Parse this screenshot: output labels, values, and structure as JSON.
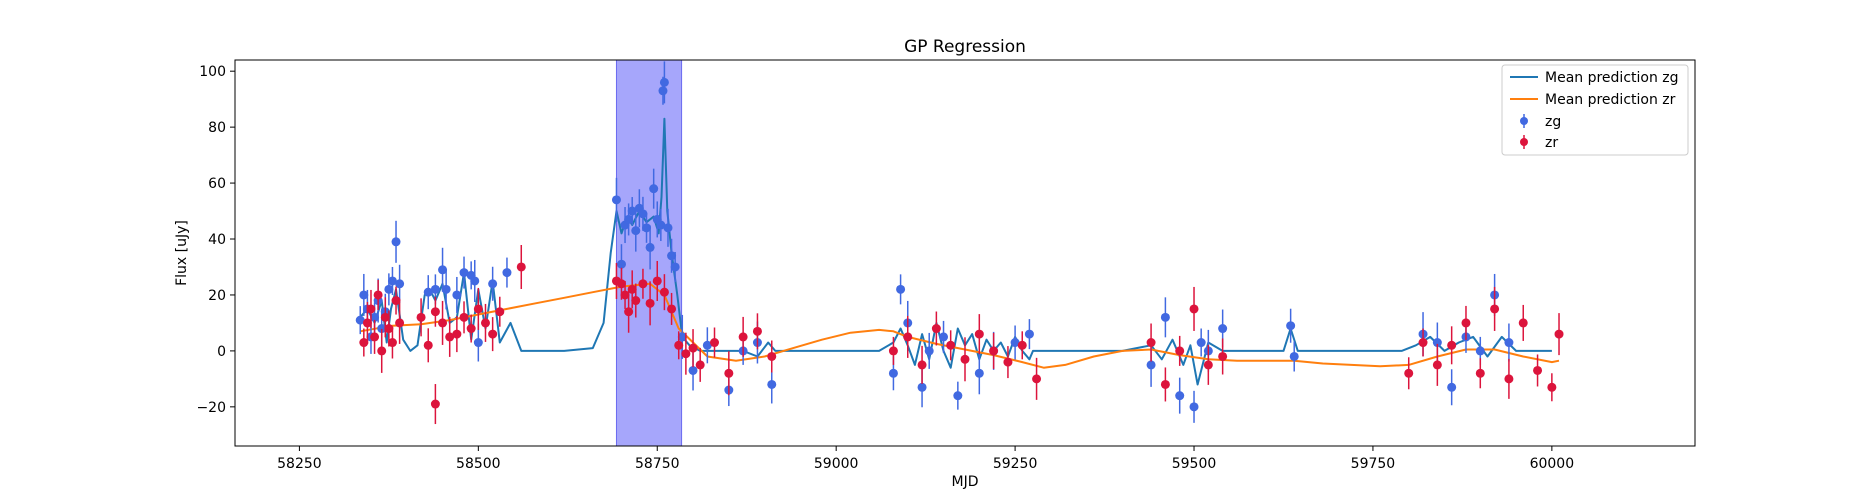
{
  "chart_data": {
    "type": "scatter",
    "title": "GP Regression",
    "xlabel": "MJD",
    "ylabel": "Flux [uJy]",
    "xlim": [
      58160,
      60200
    ],
    "ylim": [
      -34,
      104
    ],
    "xticks": [
      58250,
      58500,
      58750,
      59000,
      59250,
      59500,
      59750,
      60000
    ],
    "yticks": [
      -20,
      0,
      20,
      40,
      60,
      80,
      100
    ],
    "grid": false,
    "legend": "top-right",
    "highlight_region": {
      "x0": 58693,
      "x1": 58784,
      "color": "#a6a6fb"
    },
    "series": [
      {
        "name": "Mean prediction zg",
        "kind": "line",
        "color": "#1f77b4",
        "x": [
          58335,
          58345,
          58355,
          58365,
          58372,
          58378,
          58385,
          58395,
          58405,
          58415,
          58425,
          58432,
          58440,
          58450,
          58460,
          58470,
          58480,
          58490,
          58500,
          58510,
          58520,
          58530,
          58545,
          58560,
          58580,
          58620,
          58660,
          58675,
          58685,
          58693,
          58700,
          58708,
          58715,
          58725,
          58735,
          58745,
          58752,
          58756,
          58760,
          58764,
          58770,
          58778,
          58785,
          58795,
          58810,
          58840,
          58870,
          58890,
          58905,
          58915,
          58935,
          59000,
          59060,
          59080,
          59090,
          59100,
          59110,
          59120,
          59130,
          59140,
          59150,
          59160,
          59170,
          59180,
          59190,
          59200,
          59210,
          59220,
          59230,
          59240,
          59250,
          59260,
          59270,
          59275,
          59300,
          59400,
          59440,
          59455,
          59470,
          59485,
          59495,
          59505,
          59520,
          59540,
          59560,
          59600,
          59625,
          59635,
          59645,
          59700,
          59790,
          59810,
          59830,
          59850,
          59870,
          59890,
          59910,
          59930,
          59950,
          59970,
          60000
        ],
        "y": [
          12,
          15,
          10,
          18,
          3,
          15,
          22,
          4,
          0,
          2,
          20,
          22,
          18,
          24,
          10,
          12,
          28,
          4,
          22,
          8,
          25,
          3,
          10,
          0,
          0,
          0,
          1,
          10,
          35,
          50,
          42,
          48,
          45,
          50,
          46,
          48,
          42,
          55,
          83,
          50,
          35,
          20,
          5,
          2,
          0,
          0,
          0,
          -2,
          3,
          0,
          0,
          0,
          0,
          3,
          8,
          2,
          -5,
          6,
          -3,
          10,
          0,
          -6,
          8,
          2,
          6,
          -3,
          4,
          0,
          3,
          -2,
          5,
          0,
          -3,
          0,
          0,
          0,
          2,
          -3,
          4,
          -5,
          2,
          -12,
          3,
          0,
          0,
          0,
          0,
          8,
          0,
          0,
          0,
          2,
          5,
          0,
          3,
          5,
          -2,
          5,
          0,
          0,
          0
        ]
      },
      {
        "name": "Mean prediction zr",
        "kind": "line",
        "color": "#ff7f0e",
        "x": [
          58335,
          58380,
          58420,
          58460,
          58500,
          58540,
          58580,
          58620,
          58660,
          58700,
          58740,
          58760,
          58780,
          58820,
          58860,
          58900,
          58940,
          58980,
          59020,
          59060,
          59080,
          59100,
          59140,
          59180,
          59220,
          59260,
          59290,
          59320,
          59360,
          59400,
          59440,
          59480,
          59520,
          59560,
          59600,
          59640,
          59680,
          59720,
          59760,
          59800,
          59840,
          59880,
          59920,
          59960,
          60000,
          60010
        ],
        "y": [
          7,
          9,
          9.5,
          11,
          13,
          15,
          17,
          19,
          21,
          23,
          24,
          20,
          8,
          -2,
          -3.5,
          -2,
          1,
          4,
          6.5,
          7.5,
          7,
          5,
          2.5,
          0.5,
          -1.5,
          -4,
          -6,
          -5,
          -2,
          0,
          0.5,
          -1.5,
          -3,
          -3.5,
          -3.5,
          -3.5,
          -4.5,
          -5,
          -5.5,
          -5,
          -2,
          0.5,
          0.5,
          -2,
          -4,
          -3.5
        ]
      },
      {
        "name": "zg",
        "kind": "points",
        "color": "#4169e1",
        "x": [
          58335,
          58340,
          58345,
          58350,
          58355,
          58360,
          58365,
          58370,
          58375,
          58380,
          58385,
          58390,
          58430,
          58440,
          58450,
          58455,
          58470,
          58480,
          58490,
          58495,
          58500,
          58520,
          58540,
          58693,
          58700,
          58705,
          58710,
          58715,
          58720,
          58725,
          58730,
          58735,
          58740,
          58745,
          58750,
          58755,
          58758,
          58760,
          58765,
          58770,
          58775,
          58785,
          58800,
          58820,
          58850,
          58870,
          58890,
          58910,
          59080,
          59090,
          59100,
          59120,
          59130,
          59150,
          59170,
          59200,
          59220,
          59250,
          59270,
          59440,
          59460,
          59480,
          59500,
          59510,
          59520,
          59540,
          59635,
          59640,
          59820,
          59840,
          59860,
          59880,
          59900,
          59920,
          59940
        ],
        "y": [
          11,
          20,
          15,
          5,
          12,
          18,
          8,
          14,
          22,
          25,
          39,
          24,
          21,
          22,
          29,
          22,
          20,
          28,
          27,
          25,
          3,
          24,
          28,
          54,
          31,
          45,
          47,
          50,
          43,
          51,
          49,
          44,
          37,
          58,
          47,
          45,
          93,
          96,
          44,
          34,
          30,
          5,
          -7,
          2,
          -14,
          0,
          3,
          -12,
          -8,
          22,
          10,
          -13,
          0,
          5,
          -16,
          -8,
          0,
          3,
          6,
          -5,
          12,
          -16,
          -20,
          3,
          0,
          8,
          9,
          -2,
          6,
          3,
          -13,
          5,
          0,
          20,
          3
        ]
      },
      {
        "name": "zr",
        "kind": "points",
        "color": "#dc143c",
        "x": [
          58340,
          58345,
          58350,
          58355,
          58360,
          58365,
          58370,
          58375,
          58380,
          58385,
          58390,
          58420,
          58430,
          58440,
          58450,
          58460,
          58470,
          58480,
          58490,
          58500,
          58510,
          58520,
          58530,
          58560,
          58440,
          58693,
          58700,
          58705,
          58710,
          58715,
          58720,
          58730,
          58740,
          58750,
          58760,
          58770,
          58780,
          58790,
          58800,
          58810,
          58830,
          58850,
          58870,
          58890,
          58910,
          59080,
          59100,
          59120,
          59140,
          59160,
          59180,
          59200,
          59220,
          59240,
          59260,
          59280,
          59440,
          59460,
          59480,
          59500,
          59520,
          59540,
          59800,
          59820,
          59840,
          59860,
          59880,
          59900,
          59920,
          59940,
          59960,
          59980,
          60000,
          60010
        ],
        "y": [
          3,
          10,
          15,
          5,
          20,
          0,
          12,
          8,
          3,
          18,
          10,
          12,
          2,
          14,
          10,
          5,
          6,
          12,
          8,
          15,
          10,
          6,
          14,
          30,
          -19,
          25,
          24,
          20,
          14,
          22,
          18,
          24,
          17,
          25,
          21,
          15,
          2,
          -1,
          1,
          -5,
          3,
          -8,
          5,
          7,
          -2,
          0,
          5,
          -5,
          8,
          2,
          -3,
          6,
          0,
          -4,
          2,
          -10,
          3,
          -12,
          0,
          15,
          -5,
          -2,
          -8,
          3,
          -5,
          2,
          10,
          -8,
          15,
          -10,
          10,
          -7,
          -13,
          6
        ]
      }
    ]
  }
}
